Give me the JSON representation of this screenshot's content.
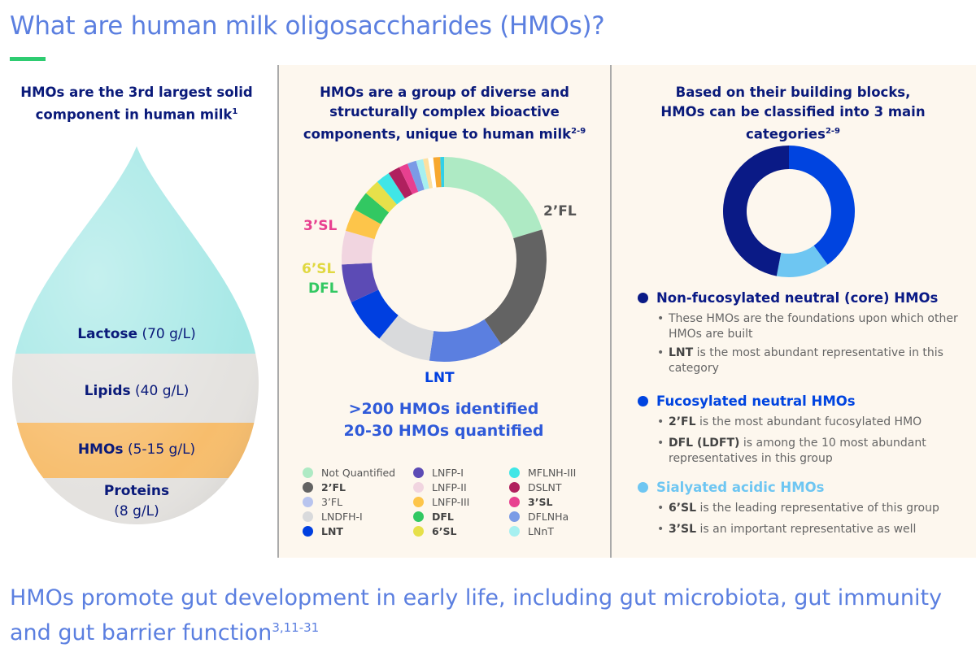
{
  "title": "What are human milk oligosaccharides (HMOs)?",
  "left": {
    "heading": "HMOs are the 3rd largest solid component in human milk",
    "heading_ref": "1",
    "components": [
      {
        "name": "Lactose",
        "amount": "(70 g/L)",
        "color": "#a6e8e6"
      },
      {
        "name": "Lipids",
        "amount": "(40 g/L)",
        "color": "#e4e2df"
      },
      {
        "name": "HMOs",
        "amount": "(5-15 g/L)",
        "color": "#f7bd6c"
      },
      {
        "name": "Proteins",
        "amount": "(8 g/L)",
        "color": "#e4e2df"
      }
    ]
  },
  "middle": {
    "heading": "HMOs are a group of diverse and structurally complex bioactive components, unique to human milk",
    "heading_ref": "2-9",
    "stat1": ">200 HMOs identified",
    "stat2": "20-30 HMOs quantified",
    "labels": {
      "fl2": "2’FL",
      "lnt": "LNT",
      "sl3": "3’SL",
      "sl6": "6’SL",
      "dfl": "DFL"
    }
  },
  "right": {
    "heading": "Based on their building blocks, HMOs can be classified into 3 main categories",
    "heading_ref": "2-9",
    "categories": [
      {
        "title": "Non-fucosylated neutral (core) HMOs",
        "color": "#0a1a86",
        "bullets": [
          {
            "bold": "",
            "text": "These HMOs are the foundations upon which other HMOs are built"
          },
          {
            "bold": "LNT",
            "text": " is the most abundant representative in this category"
          }
        ]
      },
      {
        "title": "Fucosylated neutral HMOs",
        "color": "#0044e0",
        "bullets": [
          {
            "bold": "2’FL",
            "text": " is the most abundant fucosylated HMO"
          },
          {
            "bold": "DFL (LDFT)",
            "text": " is among the 10 most abundant representatives in this group"
          }
        ]
      },
      {
        "title": "Sialyated acidic HMOs",
        "color": "#6ec6f2",
        "bullets": [
          {
            "bold": "6’SL",
            "text": " is the leading representative of this group"
          },
          {
            "bold": "3’SL",
            "text": " is an important representative as well"
          }
        ]
      }
    ]
  },
  "footer": {
    "text": "HMOs promote gut development in early life, including gut microbiota, gut immunity and gut barrier function",
    "ref": "3,11-31"
  },
  "chart_data": [
    {
      "type": "pie",
      "donut": true,
      "unit": "estimated share (%)",
      "start": "top",
      "direction": "clockwise",
      "segments": [
        {
          "name": "Not Quantified",
          "value": 20.3,
          "color": "#aeeac4",
          "bold": false
        },
        {
          "name": "2’FL",
          "value": 20.3,
          "color": "#636363",
          "bold": true
        },
        {
          "name": "3’FL",
          "value": 11.7,
          "color": "#5b7fe0",
          "legend_color": "#b8c4ee",
          "bold": false
        },
        {
          "name": "LNDFH-I",
          "value": 8.6,
          "color": "#d9dadc",
          "bold": false
        },
        {
          "name": "LNT",
          "value": 7.2,
          "color": "#003fe0",
          "bold": true
        },
        {
          "name": "LNFP-I",
          "value": 6.1,
          "color": "#5c4bb5",
          "bold": false
        },
        {
          "name": "LNFP-II",
          "value": 5.3,
          "color": "#f1d5e0",
          "bold": false
        },
        {
          "name": "LNFP-III",
          "value": 3.6,
          "color": "#fdc54a",
          "bold": false
        },
        {
          "name": "DFL",
          "value": 3.1,
          "color": "#32c862",
          "bold": true
        },
        {
          "name": "6’SL",
          "value": 2.5,
          "color": "#e6e04a",
          "bold": true
        },
        {
          "name": "MFLNH-III",
          "value": 2.2,
          "color": "#40e6e6",
          "bold": false
        },
        {
          "name": "DSLNT",
          "value": 1.9,
          "color": "#b0205e",
          "bold": false
        },
        {
          "name": "3’SL",
          "value": 1.4,
          "color": "#e84090",
          "bold": true
        },
        {
          "name": "DFLNHa",
          "value": 1.4,
          "color": "#7b9be6",
          "bold": false
        },
        {
          "name": "LNnT",
          "value": 1.1,
          "color": "#a6f0f0",
          "bold": false
        },
        {
          "name": "",
          "value": 0.8,
          "color": "#fde0a0"
        },
        {
          "name": "",
          "value": 0.8,
          "color": "#ffffff"
        },
        {
          "name": "",
          "value": 1.1,
          "color": "#f7a830"
        },
        {
          "name": "",
          "value": 0.6,
          "color": "#30d0e8"
        }
      ]
    },
    {
      "type": "pie",
      "donut": true,
      "unit": "estimated share (%)",
      "start": "top",
      "direction": "clockwise",
      "segments": [
        {
          "name": "Fucosylated neutral HMOs",
          "value": 40,
          "color": "#0044e0"
        },
        {
          "name": "Sialyated acidic HMOs",
          "value": 13,
          "color": "#6ec6f2"
        },
        {
          "name": "Non-fucosylated neutral (core) HMOs",
          "value": 47,
          "color": "#0a1a86"
        }
      ]
    }
  ]
}
